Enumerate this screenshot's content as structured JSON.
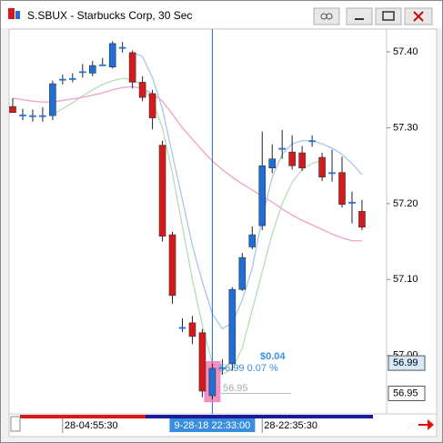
{
  "window": {
    "title": "S.SBUX - Starbucks Corp, 30 Sec"
  },
  "chart_data": {
    "type": "candlestick",
    "categories": [
      null,
      null,
      null,
      null,
      null,
      "28-04:55:30",
      null,
      null,
      null,
      null,
      null,
      null,
      null,
      null,
      null,
      null,
      null,
      null,
      null,
      null,
      "9-28-18 22:33:00",
      null,
      null,
      null,
      null,
      "28-22:35:30",
      null,
      null,
      null,
      null,
      null,
      null,
      null,
      null,
      null,
      null
    ],
    "open": [
      57.328,
      57.317,
      57.316,
      57.316,
      57.316,
      57.364,
      57.365,
      57.374,
      57.372,
      57.383,
      57.38,
      57.406,
      57.399,
      57.36,
      57.345,
      57.277,
      57.159,
      57.037,
      57.043,
      57.03,
      56.947,
      56.984,
      56.989,
      57.087,
      57.143,
      57.171,
      57.247,
      57.273,
      57.268,
      57.267,
      57.283,
      57.261,
      57.241,
      57.241,
      57.202,
      57.19
    ],
    "high": [
      57.339,
      57.325,
      57.324,
      57.327,
      57.362,
      57.37,
      57.372,
      57.384,
      57.388,
      57.392,
      57.414,
      57.413,
      57.402,
      57.368,
      57.35,
      57.283,
      57.163,
      57.049,
      57.052,
      57.035,
      56.989,
      56.995,
      57.09,
      57.135,
      57.17,
      57.295,
      57.278,
      57.297,
      57.29,
      57.276,
      57.29,
      57.267,
      57.271,
      57.262,
      57.216,
      57.205
    ],
    "low": [
      57.32,
      57.31,
      57.308,
      57.308,
      57.31,
      57.357,
      57.36,
      57.366,
      57.368,
      57.382,
      57.378,
      57.399,
      57.352,
      57.335,
      57.298,
      57.15,
      57.068,
      57.031,
      57.015,
      56.945,
      56.942,
      56.975,
      56.98,
      57.085,
      57.14,
      57.165,
      57.24,
      57.259,
      57.245,
      57.243,
      57.275,
      57.23,
      57.229,
      57.195,
      57.174,
      57.165
    ],
    "close": [
      57.32,
      57.317,
      57.316,
      57.316,
      57.358,
      57.364,
      57.365,
      57.374,
      57.382,
      57.383,
      57.411,
      57.406,
      57.36,
      57.34,
      57.313,
      57.157,
      57.079,
      57.037,
      57.025,
      56.953,
      56.983,
      56.984,
      57.087,
      57.129,
      57.159,
      57.25,
      57.259,
      57.273,
      57.25,
      57.247,
      57.283,
      57.235,
      57.241,
      57.199,
      57.202,
      57.169
    ],
    "up_color": "#1f6fd6",
    "down_color": "#d41a1a",
    "overlays": [
      {
        "color": "#a8c8ea",
        "values": [
          null,
          null,
          null,
          null,
          null,
          null,
          null,
          null,
          null,
          null,
          null,
          null,
          57.399,
          57.394,
          57.366,
          57.325,
          57.265,
          57.205,
          57.145,
          57.097,
          57.055,
          57.035,
          57.043,
          57.073,
          57.115,
          57.181,
          57.235,
          57.265,
          57.279,
          57.283,
          57.283,
          57.279,
          57.273,
          57.265,
          57.253,
          57.238
        ]
      },
      {
        "color": "#b8dcb8",
        "values": [
          null,
          null,
          null,
          null,
          57.318,
          57.325,
          57.333,
          57.342,
          57.35,
          57.357,
          57.362,
          57.365,
          57.364,
          57.355,
          57.335,
          57.3,
          57.24,
          57.17,
          57.1,
          57.04,
          56.99,
          56.975,
          56.982,
          57.01,
          57.06,
          57.11,
          57.16,
          57.2,
          57.228,
          57.245,
          57.253,
          57.257,
          null,
          null,
          null,
          null
        ]
      },
      {
        "color": "#f0a0c8",
        "values": [
          57.339,
          57.337,
          57.335,
          57.334,
          57.334,
          57.336,
          57.338,
          57.34,
          57.343,
          57.346,
          57.35,
          57.353,
          57.354,
          57.352,
          57.345,
          57.335,
          57.318,
          57.3,
          57.285,
          57.27,
          57.256,
          57.245,
          57.235,
          57.226,
          57.218,
          57.21,
          57.202,
          57.193,
          57.185,
          57.178,
          57.172,
          57.166,
          57.16,
          57.155,
          57.151,
          57.151
        ]
      }
    ],
    "ylim": [
      56.923,
      57.43
    ],
    "yticks": [
      {
        "value": 57.4,
        "label": "57.40"
      },
      {
        "value": 57.3,
        "label": "57.30"
      },
      {
        "value": 57.2,
        "label": "57.20"
      },
      {
        "value": 57.1,
        "label": "57.10"
      },
      {
        "value": 57.0,
        "label": "57.00"
      }
    ],
    "crosshair": 20,
    "price_labels": [
      {
        "value": 56.99,
        "label": "56.99",
        "color": "#d6e8fb"
      },
      {
        "value": 56.95,
        "label": "56.95",
        "color": "#ffffff"
      }
    ],
    "annotations": {
      "change": "$0.04",
      "price_change": "56.99 0.07 %",
      "reference": "56.95"
    }
  }
}
